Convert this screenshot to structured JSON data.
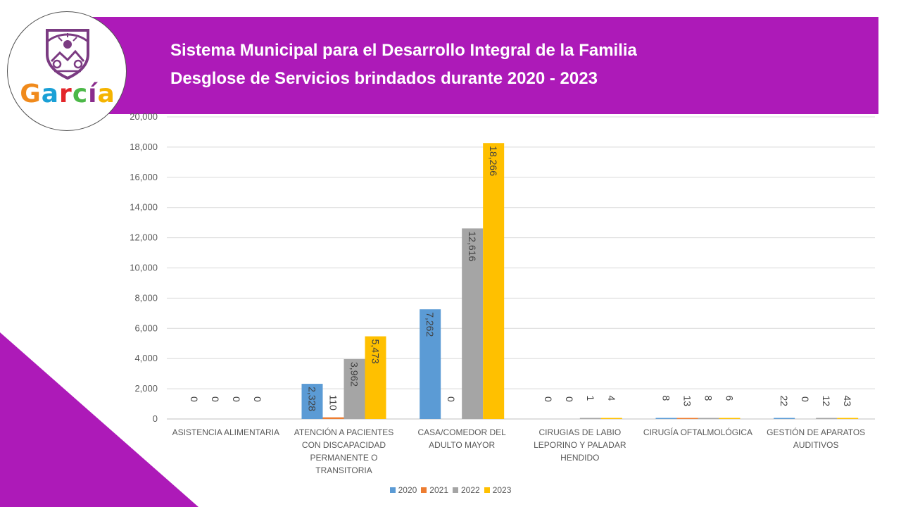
{
  "header": {
    "title_line1": "Sistema Municipal para el Desarrollo Integral de la Familia",
    "title_line2": "Desglose de Servicios brindados durante 2020 - 2023",
    "banner_color": "#ad1ab8"
  },
  "logo": {
    "word": "García",
    "letter_colors": [
      "#f08a1c",
      "#1aa0d6",
      "#e3262a",
      "#4cb848",
      "#8a2c8c",
      "#f5b400"
    ],
    "emblem_color": "#7b3b82"
  },
  "chart_data": {
    "type": "bar",
    "title": "",
    "xlabel": "",
    "ylabel": "",
    "ylim": [
      0,
      20000
    ],
    "y_ticks": [
      "0",
      "2,000",
      "4,000",
      "6,000",
      "8,000",
      "10,000",
      "12,000",
      "14,000",
      "16,000",
      "18,000",
      "20,000"
    ],
    "y_tick_values": [
      0,
      2000,
      4000,
      6000,
      8000,
      10000,
      12000,
      14000,
      16000,
      18000,
      20000
    ],
    "grid": true,
    "legend_position": "bottom",
    "categories": [
      [
        "ASISTENCIA ALIMENTARIA"
      ],
      [
        "ATENCIÓN A PACIENTES",
        "CON DISCAPACIDAD",
        "PERMANENTE O",
        "TRANSITORIA"
      ],
      [
        "CASA/COMEDOR DEL",
        "ADULTO MAYOR"
      ],
      [
        "CIRUGIAS DE LABIO",
        "LEPORINO Y PALADAR",
        "HENDIDO"
      ],
      [
        "CIRUGÍA OFTALMOLÓGICA"
      ],
      [
        "GESTIÓN DE APARATOS",
        "AUDITIVOS"
      ]
    ],
    "series": [
      {
        "name": "2020",
        "color": "#5b9bd5",
        "values": [
          0,
          2328,
          7262,
          0,
          8,
          22
        ],
        "labels": [
          "0",
          "2,328",
          "7,262",
          "0",
          "8",
          "22"
        ]
      },
      {
        "name": "2021",
        "color": "#ed7d31",
        "values": [
          0,
          110,
          0,
          0,
          13,
          0
        ],
        "labels": [
          "0",
          "110",
          "0",
          "0",
          "13",
          "0"
        ]
      },
      {
        "name": "2022",
        "color": "#a5a5a5",
        "values": [
          0,
          3962,
          12616,
          1,
          8,
          12
        ],
        "labels": [
          "0",
          "3,962",
          "12,616",
          "1",
          "8",
          "12"
        ]
      },
      {
        "name": "2023",
        "color": "#ffc000",
        "values": [
          0,
          5473,
          18266,
          4,
          6,
          43
        ],
        "labels": [
          "0",
          "5,473",
          "18,266",
          "4",
          "6",
          "43"
        ]
      }
    ]
  }
}
